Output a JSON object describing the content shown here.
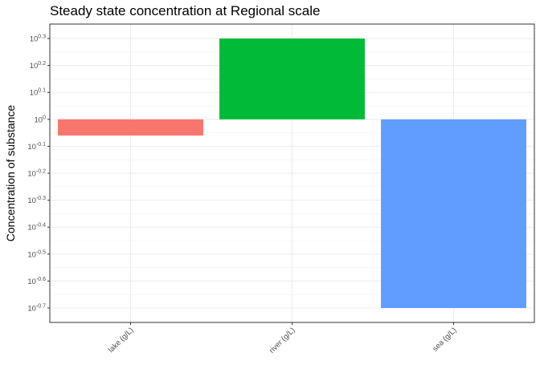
{
  "chart_data": {
    "type": "bar",
    "title": "Steady state concentration at Regional scale",
    "xlabel": "",
    "ylabel": "Concentration of substance",
    "y_scale": "log10",
    "ylim_log10": [
      -0.7,
      0.3
    ],
    "y_ticks_log10": [
      0.3,
      0.2,
      0.1,
      0,
      -0.1,
      -0.2,
      -0.3,
      -0.4,
      -0.5,
      -0.6,
      -0.7
    ],
    "categories": [
      "lake (g/L)",
      "river (g/L)",
      "sea (g/L)"
    ],
    "values_log10": [
      -0.06,
      0.3,
      -0.7
    ],
    "colors": [
      "#F8766D",
      "#00BA38",
      "#619CFF"
    ],
    "grid": true,
    "legend": "none"
  }
}
